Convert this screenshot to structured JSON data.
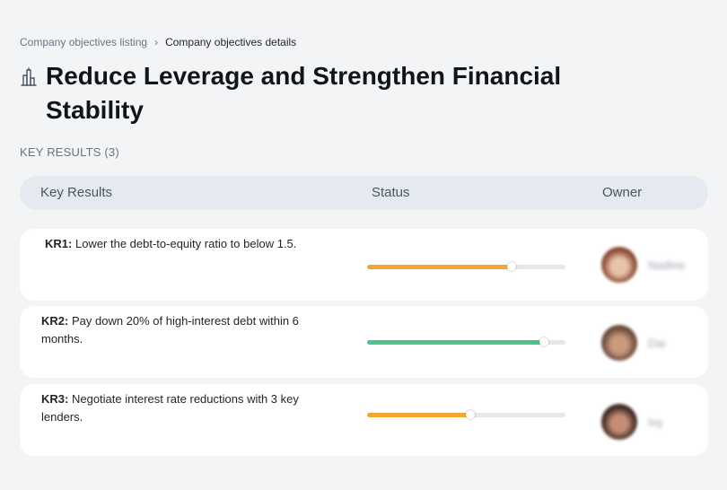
{
  "breadcrumb": {
    "items": [
      "Company objectives listing",
      "Company objectives details"
    ]
  },
  "objective": {
    "icon": "bank-building-icon",
    "title": "Reduce Leverage and Strengthen Financial Stability"
  },
  "section_label": "KEY RESULTS (3)",
  "table": {
    "columns": [
      "Key Results",
      "Status",
      "Owner"
    ]
  },
  "key_results": [
    {
      "id": "KR1:",
      "text": "Lower the debt-to-equity ratio to below 1.5.",
      "progress": 0.73,
      "color": "#f6a732",
      "owner": "Nadine",
      "avatar_colors": [
        "#8a4a33",
        "#e8c3ab"
      ]
    },
    {
      "id": "KR2:",
      "text": "Pay down 20% of high-interest debt within 6 months.",
      "progress": 0.89,
      "color": "#4cc38a",
      "owner": "Dai",
      "avatar_colors": [
        "#6b4a3a",
        "#c99a7c"
      ]
    },
    {
      "id": "KR3:",
      "text": "Negotiate interest rate reductions with 3 key lenders.",
      "progress": 0.52,
      "color": "#f6a732",
      "owner": "Ivy",
      "avatar_colors": [
        "#3f2a22",
        "#c48d74"
      ]
    }
  ]
}
